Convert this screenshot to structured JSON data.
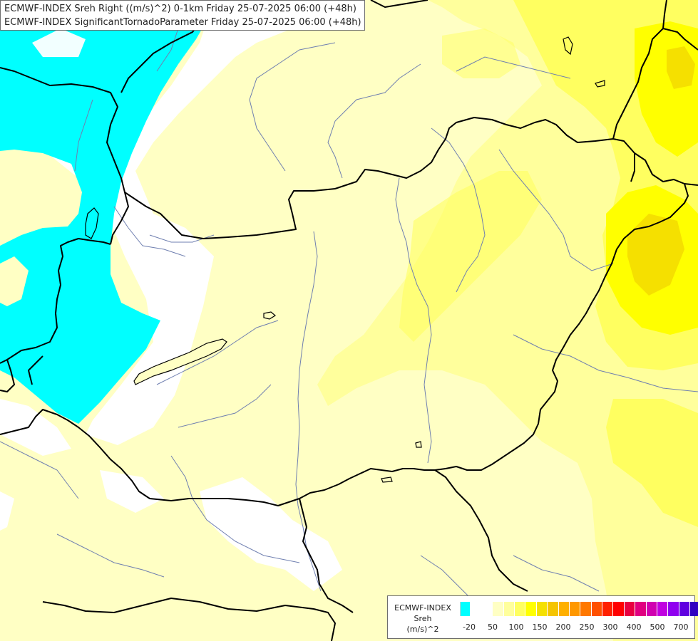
{
  "titles": [
    "ECMWF-INDEX Sreh Right ((m/s)^2) 0-1km Friday 25-07-2025 06:00 (+48h)",
    "ECMWF-INDEX SignificantTornadoParameter Friday 25-07-2025 06:00 (+48h)"
  ],
  "legend": {
    "model": "ECMWF-INDEX",
    "variable": "Sreh",
    "unit": "(m/s)^2",
    "colors": [
      "#00ffff",
      "#ffffff",
      "#ffffff",
      "#ffffc4",
      "#ffff9c",
      "#ffff60",
      "#ffff00",
      "#f5e000",
      "#f5c400",
      "#ffb000",
      "#ff9800",
      "#ff7800",
      "#ff5000",
      "#ff2000",
      "#ff0000",
      "#e80040",
      "#e00080",
      "#d000b0",
      "#c000e0",
      "#9000f0",
      "#6000e0",
      "#3000c0",
      "#000080"
    ],
    "tick_labels": [
      "-20",
      "50",
      "100",
      "150",
      "200",
      "250",
      "300",
      "400",
      "500",
      "700"
    ]
  },
  "map_colors": {
    "cyan": "#00ffff",
    "white": "#ffffff",
    "pale_yellow": "#ffffc4",
    "light_yellow": "#ffff9c",
    "yellow": "#ffff60",
    "strong_yellow": "#ffff00",
    "dark_yellow": "#f5e000",
    "border": "#000000",
    "river": "#6f7fb0"
  }
}
